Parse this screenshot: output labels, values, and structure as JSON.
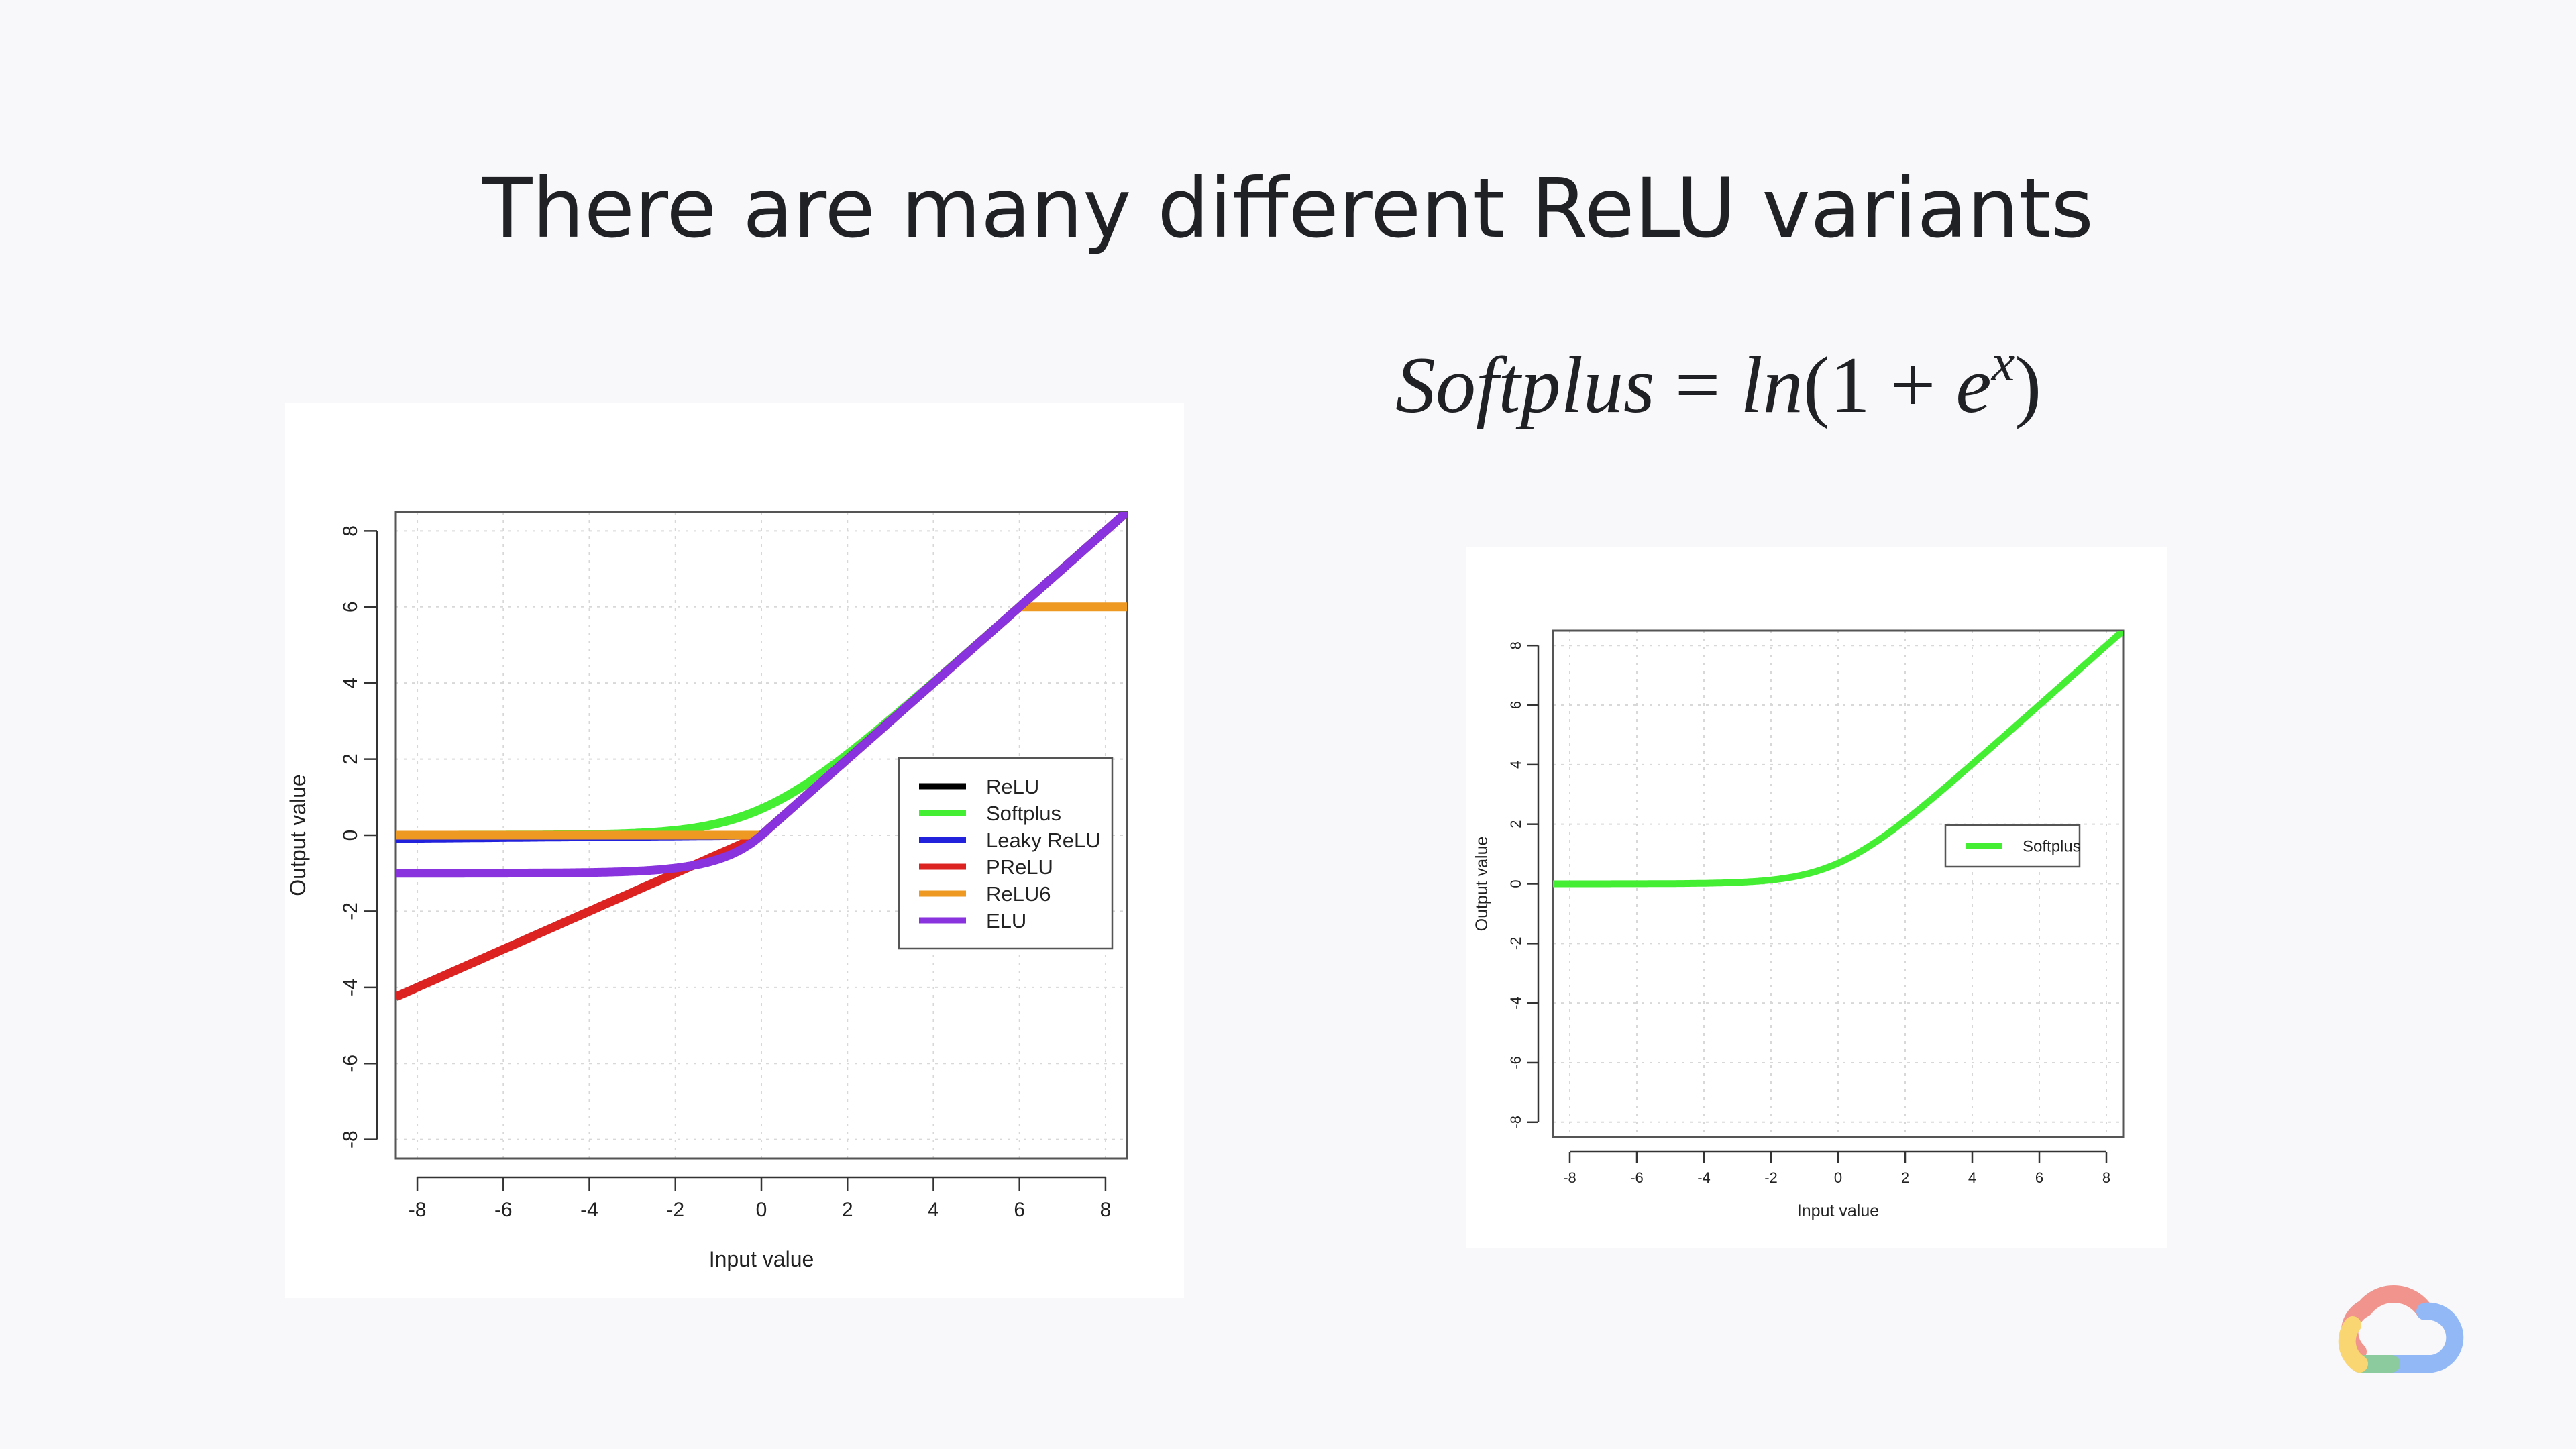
{
  "slide": {
    "title": "There are many different ReLU variants",
    "formula": {
      "lhs": "Softplus",
      "eq": " = ",
      "fn": "ln",
      "open": "(1 + ",
      "base": "e",
      "exp": "x",
      "close": ")"
    },
    "logo_icon": "google-cloud-logo-icon"
  },
  "chart_data": [
    {
      "type": "line",
      "xlabel": "Input value",
      "ylabel": "Output value",
      "xlim": [
        -8.5,
        8.5
      ],
      "ylim": [
        -8.5,
        8.5
      ],
      "xticks": [
        -8,
        -6,
        -4,
        -2,
        0,
        2,
        4,
        6,
        8
      ],
      "yticks": [
        -8,
        -6,
        -4,
        -2,
        0,
        2,
        4,
        6,
        8
      ],
      "grid": true,
      "legend_position": "right",
      "series": [
        {
          "name": "ReLU",
          "fn": "relu",
          "color": "#000000"
        },
        {
          "name": "Softplus",
          "fn": "softplus",
          "color": "#44ee33"
        },
        {
          "name": "Leaky ReLU",
          "fn": "leaky_relu",
          "color": "#2222dd"
        },
        {
          "name": "PReLU",
          "fn": "prelu",
          "color": "#dd2222"
        },
        {
          "name": "ReLU6",
          "fn": "relu6",
          "color": "#ee9922"
        },
        {
          "name": "ELU",
          "fn": "elu",
          "color": "#8833dd"
        }
      ]
    },
    {
      "type": "line",
      "xlabel": "Input value",
      "ylabel": "Output value",
      "xlim": [
        -8.5,
        8.5
      ],
      "ylim": [
        -8.5,
        8.5
      ],
      "xticks": [
        -8,
        -6,
        -4,
        -2,
        0,
        2,
        4,
        6,
        8
      ],
      "yticks": [
        -8,
        -6,
        -4,
        -2,
        0,
        2,
        4,
        6,
        8
      ],
      "grid": true,
      "legend_position": "right",
      "series": [
        {
          "name": "Softplus",
          "fn": "softplus",
          "color": "#44ee33"
        }
      ]
    }
  ]
}
